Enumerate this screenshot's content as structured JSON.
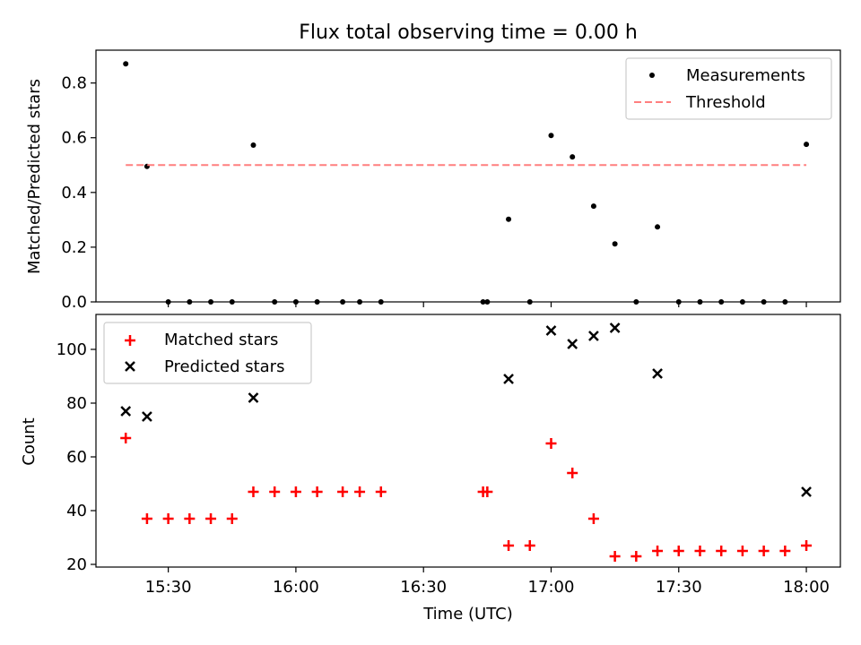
{
  "chart_data": [
    {
      "type": "scatter",
      "title": "Flux total observing time = 0.00 h",
      "ylabel": "Matched/Predicted stars",
      "xlabel": "",
      "xlim": [
        "15:13",
        "18:08"
      ],
      "ylim": [
        0,
        0.92
      ],
      "yticks": [
        0.0,
        0.2,
        0.4,
        0.6,
        0.8
      ],
      "ytick_labels": [
        "0.0",
        "0.2",
        "0.4",
        "0.6",
        "0.8"
      ],
      "grid": false,
      "legend": "top-right",
      "series": [
        {
          "name": "Measurements",
          "style": "dot",
          "color": "#000000",
          "x": [
            "15:20",
            "15:25",
            "15:30",
            "15:35",
            "15:40",
            "15:45",
            "15:50",
            "15:55",
            "16:00",
            "16:05",
            "16:11",
            "16:15",
            "16:20",
            "16:44",
            "16:45",
            "16:50",
            "16:55",
            "17:00",
            "17:05",
            "17:10",
            "17:15",
            "17:20",
            "17:25",
            "17:30",
            "17:35",
            "17:40",
            "17:45",
            "17:50",
            "17:55",
            "18:00"
          ],
          "y": [
            0.87,
            0.495,
            0,
            0,
            0,
            0,
            0.573,
            0,
            0,
            0,
            0,
            0,
            0,
            0,
            0,
            0.302,
            0,
            0.608,
            0.53,
            0.35,
            0.212,
            0,
            0.274,
            0,
            0,
            0,
            0,
            0,
            0,
            0.576
          ]
        },
        {
          "name": "Threshold",
          "style": "dashed-line",
          "color": "#ff7f7f",
          "x": [
            "15:20",
            "18:00"
          ],
          "y": [
            0.5,
            0.5
          ]
        }
      ]
    },
    {
      "type": "scatter",
      "title": "",
      "ylabel": "Count",
      "xlabel": "Time (UTC)",
      "xlim": [
        "15:13",
        "18:08"
      ],
      "ylim": [
        19,
        113
      ],
      "yticks": [
        20,
        40,
        60,
        80,
        100
      ],
      "ytick_labels": [
        "20",
        "40",
        "60",
        "80",
        "100"
      ],
      "xticks": [
        "15:30",
        "16:00",
        "16:30",
        "17:00",
        "17:30",
        "18:00"
      ],
      "xtick_labels": [
        "15:30",
        "16:00",
        "16:30",
        "17:00",
        "17:30",
        "18:00"
      ],
      "grid": false,
      "legend": "top-left",
      "series": [
        {
          "name": "Matched stars",
          "style": "plus",
          "color": "#ff0000",
          "x": [
            "15:20",
            "15:25",
            "15:30",
            "15:35",
            "15:40",
            "15:45",
            "15:50",
            "15:55",
            "16:00",
            "16:05",
            "16:11",
            "16:15",
            "16:20",
            "16:44",
            "16:45",
            "16:50",
            "16:55",
            "17:00",
            "17:05",
            "17:10",
            "17:15",
            "17:20",
            "17:25",
            "17:30",
            "17:35",
            "17:40",
            "17:45",
            "17:50",
            "17:55",
            "18:00"
          ],
          "y": [
            67,
            37,
            37,
            37,
            37,
            37,
            47,
            47,
            47,
            47,
            47,
            47,
            47,
            47,
            47,
            27,
            27,
            65,
            54,
            37,
            23,
            23,
            25,
            25,
            25,
            25,
            25,
            25,
            25,
            27
          ]
        },
        {
          "name": "Predicted stars",
          "style": "x",
          "color": "#000000",
          "x": [
            "15:20",
            "15:25",
            "15:50",
            "16:50",
            "17:00",
            "17:05",
            "17:10",
            "17:15",
            "17:25",
            "18:00"
          ],
          "y": [
            77,
            75,
            82,
            89,
            107,
            102,
            105,
            108,
            91,
            47
          ]
        }
      ]
    }
  ]
}
